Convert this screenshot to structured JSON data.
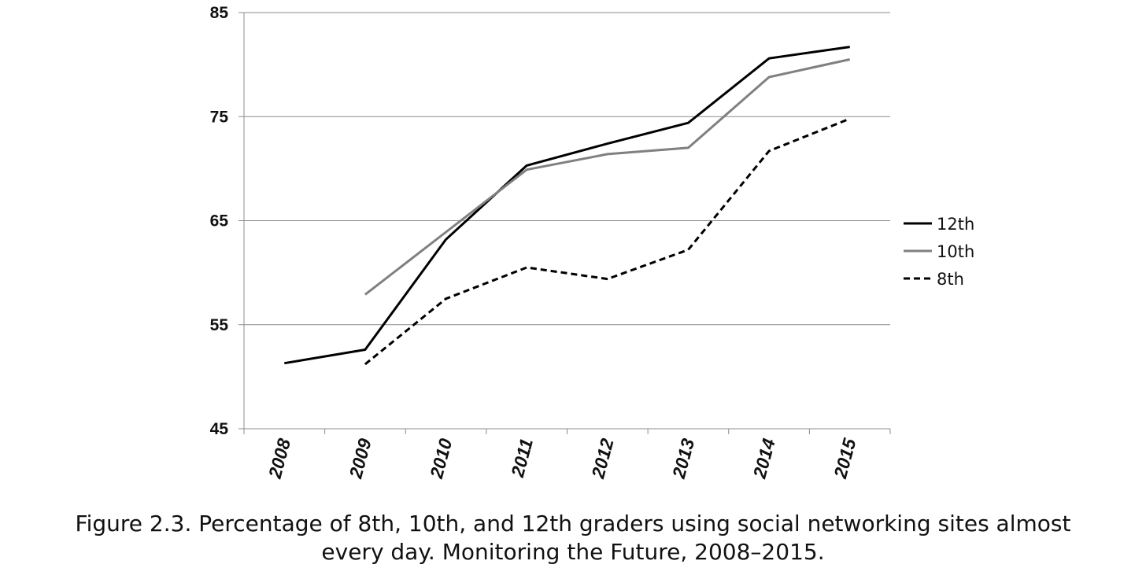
{
  "chart_data": {
    "type": "line",
    "categories": [
      "2008",
      "2009",
      "2010",
      "2011",
      "2012",
      "2013",
      "2014",
      "2015"
    ],
    "series": [
      {
        "name": "12th",
        "values": [
          51.3,
          52.6,
          63.2,
          70.3,
          72.4,
          74.4,
          80.6,
          81.7
        ],
        "color": "#000000",
        "dash": "solid"
      },
      {
        "name": "10th",
        "values": [
          null,
          57.9,
          63.9,
          69.9,
          71.4,
          72.0,
          78.8,
          80.5
        ],
        "color": "#808080",
        "dash": "solid"
      },
      {
        "name": "8th",
        "values": [
          null,
          51.2,
          57.5,
          60.5,
          59.4,
          62.2,
          71.7,
          74.8
        ],
        "color": "#000000",
        "dash": "dashed"
      }
    ],
    "ylim": [
      45,
      85
    ],
    "yticks": [
      "45",
      "55",
      "65",
      "75",
      "85"
    ],
    "grid": true,
    "legend_position": "right",
    "title": "",
    "xlabel": "",
    "ylabel": ""
  },
  "caption": {
    "line1": "Figure 2.3. Percentage of 8th, 10th, and 12th graders using social networking sites almost",
    "line2": "every day. Monitoring the Future, 2008–2015."
  }
}
